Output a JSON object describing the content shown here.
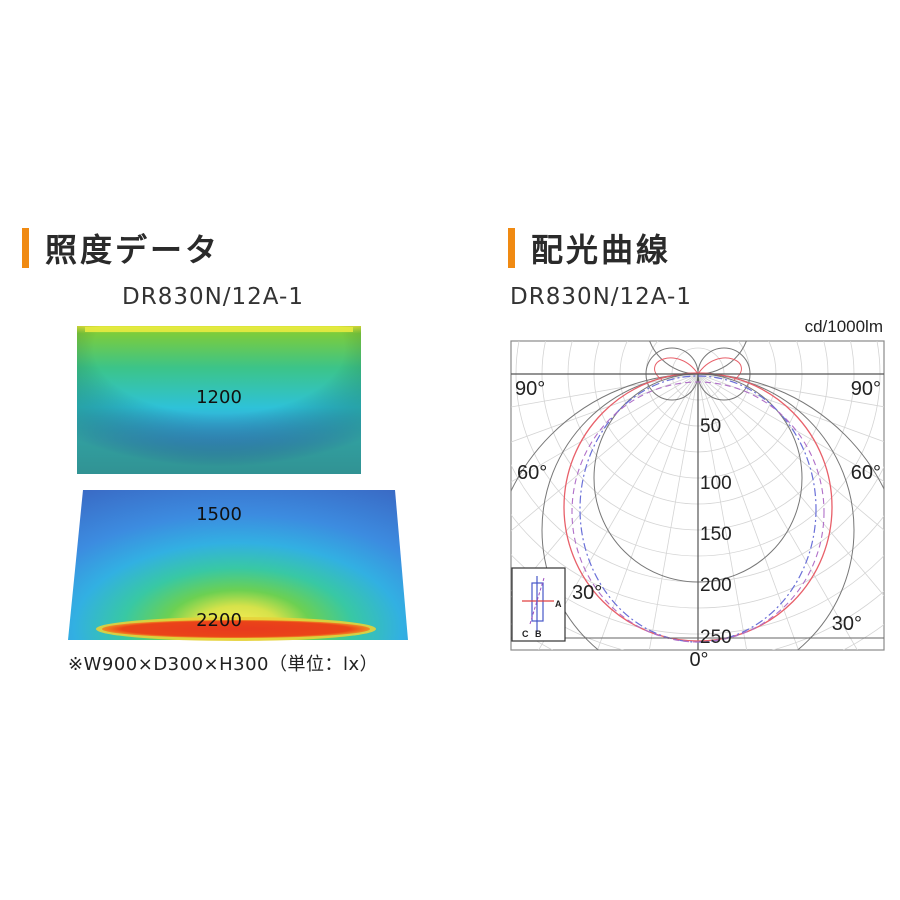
{
  "illuminance": {
    "title": "照度データ",
    "model": "DR830N/12A-1",
    "labels": [
      "1200",
      "1500",
      "2200"
    ],
    "note": "※W900×D300×H300（単位：lx）"
  },
  "distribution": {
    "title": "配光曲線",
    "model": "DR830N/12A-1",
    "unit_label": "cd/1000lm",
    "angle_labels": {
      "top_left": "90°",
      "top_right": "90°",
      "mid_left": "60°",
      "mid_right": "60°",
      "low_left": "30°",
      "low_right": "30°",
      "bottom": "0°"
    },
    "radial_labels": [
      "50",
      "100",
      "150",
      "200",
      "250"
    ],
    "inset_labels": {
      "a": "A",
      "b": "B",
      "c": "C"
    }
  },
  "colors": {
    "accent": "#f08a12",
    "curve_red": "#e8606a",
    "curve_blue": "#6a70d8",
    "curve_purple": "#b070c8"
  }
}
